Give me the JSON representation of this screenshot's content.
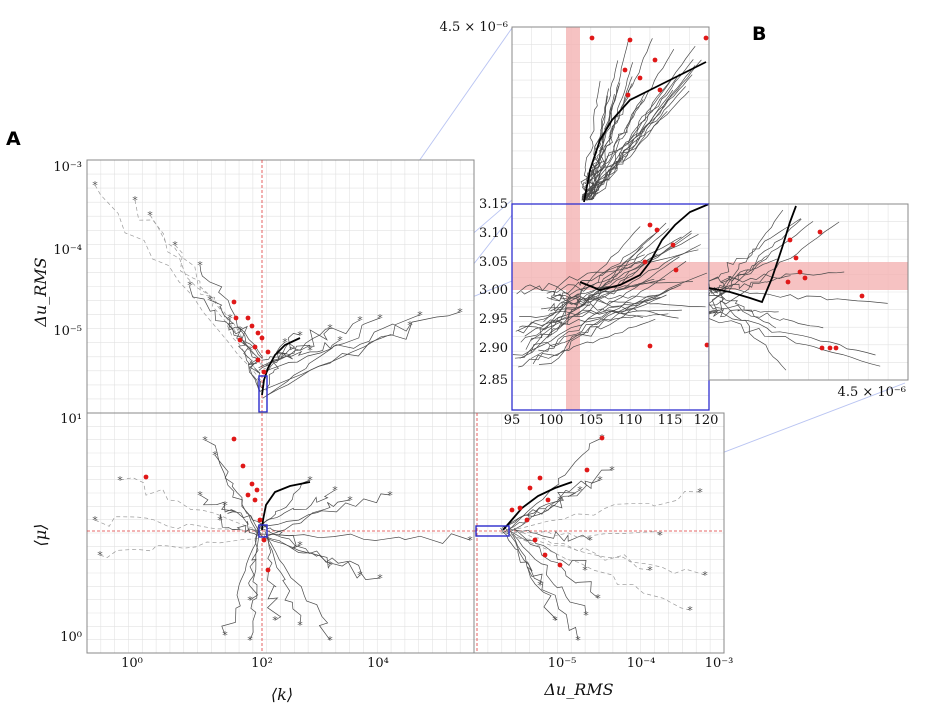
{
  "panels": {
    "a": "A",
    "b": "B"
  },
  "colors": {
    "trajectory": "#4a4a4a",
    "mean_trajectory": "#000000",
    "endpoint": "#e01818",
    "target_line": "#e03a3a",
    "target_band": "#f4b3b3",
    "zoom_box": "#2b2bcc",
    "connector": "#b9c4f2"
  },
  "axes": {
    "k_label": "⟨k⟩",
    "mu_label": "⟨μ⟩",
    "du_label": "Δu_RMS",
    "k_ticks": [
      "10⁰",
      "10²",
      "10⁴"
    ],
    "du_x_ticks": [
      "10⁻⁵",
      "10⁻⁴",
      "10⁻³"
    ],
    "du_y_ticks": [
      "10⁻³",
      "10⁻⁴",
      "10⁻⁵"
    ],
    "mu_ticks": [
      "10¹",
      "10⁰"
    ],
    "zoom_x_ticks": [
      "95",
      "100",
      "105",
      "110",
      "115",
      "120"
    ],
    "zoom_y_ticks": [
      "3.15",
      "3.10",
      "3.05",
      "3.00",
      "2.95",
      "2.90",
      "2.85"
    ],
    "zoom_top_label": "4.5 × 10⁻⁶",
    "zoom_right_label": "4.5 × 10⁻⁶"
  },
  "chart_data": [
    {
      "type": "line",
      "panel": "A (top)",
      "xlabel": "⟨k⟩",
      "ylabel": "Δu_RMS",
      "x_scale": "log",
      "y_scale": "log",
      "xlim": [
        0.1,
        1000000
      ],
      "ylim": [
        1e-06,
        0.001
      ],
      "target_x": 100,
      "description_series": "Many grey optimisation trajectories converging toward ⟨k⟩ = 100; one bold black mean trajectory; red dots mark endpoints; * marks start points",
      "grid": true
    },
    {
      "type": "line",
      "panel": "A (bottom-left)",
      "xlabel": "⟨k⟩",
      "ylabel": "⟨μ⟩",
      "x_scale": "log",
      "y_scale": "log",
      "xlim": [
        0.1,
        1000000
      ],
      "ylim": [
        0.8,
        10
      ],
      "target_x": 100,
      "target_y": 3.0,
      "grid": true
    },
    {
      "type": "line",
      "panel": "A (bottom-right)",
      "xlabel": "Δu_RMS",
      "ylabel": "⟨μ⟩",
      "x_scale": "log",
      "y_scale": "log",
      "xlim": [
        1e-06,
        0.001
      ],
      "ylim": [
        0.8,
        10
      ],
      "target_y": 3.0,
      "grid": true
    },
    {
      "type": "line",
      "panel": "B (zoom)",
      "xlabel": "⟨k⟩",
      "ylabel": "⟨μ⟩",
      "xlim": [
        95,
        120
      ],
      "ylim": [
        2.85,
        3.15
      ],
      "target_band_x": [
        101.5,
        103
      ],
      "target_band_y": [
        3.0,
        3.05
      ],
      "grid": true
    }
  ]
}
